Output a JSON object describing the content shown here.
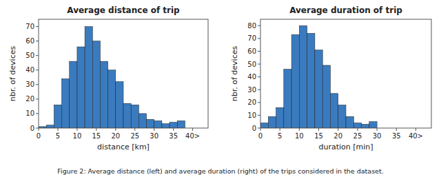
{
  "chart_data": [
    {
      "type": "histogram",
      "title": "Average distance of trip",
      "xlabel": "distance [km]",
      "ylabel": "nbr. of devices",
      "bins": [
        0,
        2,
        4,
        6,
        8,
        10,
        12,
        14,
        16,
        18,
        20,
        22,
        24,
        26,
        28,
        30,
        32,
        34,
        36,
        38
      ],
      "values": [
        1,
        2,
        16,
        34,
        46,
        56,
        70,
        60,
        46,
        40,
        32,
        17,
        16,
        10,
        6,
        5,
        3,
        4,
        5
      ],
      "color": "#3a7bbf",
      "xlim": [
        0,
        44
      ],
      "xticks": [
        0,
        5,
        10,
        15,
        20,
        25,
        30,
        35,
        {
          "value": 40,
          "label": "40>"
        }
      ],
      "ylim": [
        0,
        75
      ],
      "yticks": [
        0,
        10,
        20,
        30,
        40,
        50,
        60,
        70
      ],
      "grid": false
    },
    {
      "type": "histogram",
      "title": "Average duration of trip",
      "xlabel": "duration [min]",
      "ylabel": "nbr. of devices",
      "bins": [
        0,
        2,
        4,
        6,
        8,
        10,
        12,
        14,
        16,
        18,
        20,
        22,
        24,
        26,
        28,
        30
      ],
      "values": [
        4,
        9,
        16,
        46,
        73,
        80,
        74,
        61,
        49,
        27,
        18,
        9,
        4,
        3,
        5
      ],
      "color": "#3a7bbf",
      "xlim": [
        0,
        44
      ],
      "xticks": [
        0,
        5,
        10,
        15,
        20,
        25,
        30,
        35,
        {
          "value": 40,
          "label": "40>"
        }
      ],
      "ylim": [
        0,
        85
      ],
      "yticks": [
        0,
        10,
        20,
        30,
        40,
        50,
        60,
        70,
        80
      ],
      "grid": false
    }
  ],
  "caption": "Figure 2: Average distance (left) and average duration (right) of the trips considered in the dataset."
}
